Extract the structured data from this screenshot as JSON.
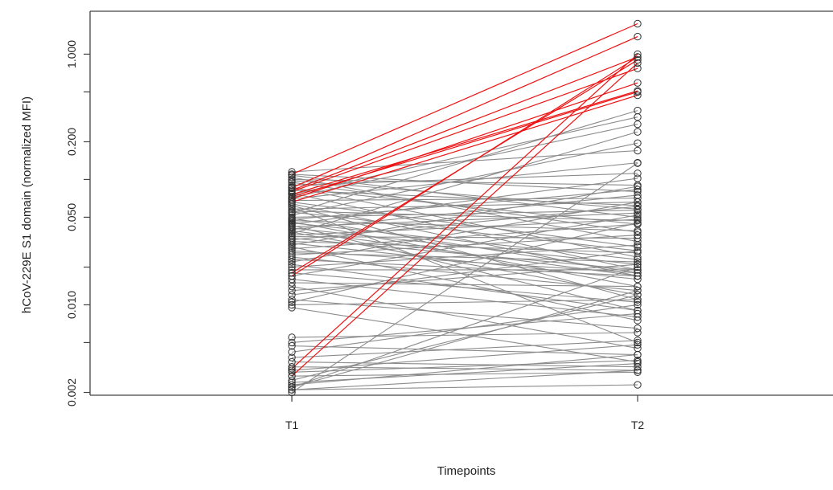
{
  "chart_data": {
    "type": "line",
    "title": "",
    "xlabel": "Timepoints",
    "ylabel": "hCoV-229E S1 domain (normalized MFI)",
    "x_categories": [
      "T1",
      "T2"
    ],
    "y_scale": "log",
    "ylim": [
      0.0019,
      2.2
    ],
    "y_ticks": [
      0.002,
      0.01,
      0.05,
      0.2,
      1.0
    ],
    "y_tick_labels": [
      "0.002",
      "0.010",
      "0.050",
      "0.200",
      "1.000"
    ],
    "grid": false,
    "legend": "none",
    "colors": {
      "red": "#ee1111",
      "gray": "#8c8c8c",
      "point_stroke": "#333333",
      "axis": "#444444"
    },
    "red_series": [
      [
        0.11,
        1.75
      ],
      [
        0.086,
        1.38
      ],
      [
        0.082,
        0.95
      ],
      [
        0.08,
        0.77
      ],
      [
        0.076,
        0.51
      ],
      [
        0.073,
        0.5
      ],
      [
        0.07,
        0.59
      ],
      [
        0.066,
        0.47
      ],
      [
        0.018,
        0.9
      ],
      [
        0.017,
        0.95
      ],
      [
        0.0031,
        1.0
      ],
      [
        0.0027,
        0.85
      ]
    ],
    "gray_series": [
      [
        0.115,
        0.17
      ],
      [
        0.11,
        0.08
      ],
      [
        0.108,
        0.05
      ],
      [
        0.104,
        0.032
      ],
      [
        0.1,
        0.09
      ],
      [
        0.098,
        0.058
      ],
      [
        0.095,
        0.038
      ],
      [
        0.09,
        0.112
      ],
      [
        0.087,
        0.024
      ],
      [
        0.085,
        0.044
      ],
      [
        0.082,
        0.062
      ],
      [
        0.078,
        0.019
      ],
      [
        0.076,
        0.315
      ],
      [
        0.072,
        0.276
      ],
      [
        0.07,
        0.136
      ],
      [
        0.068,
        0.071
      ],
      [
        0.066,
        0.029
      ],
      [
        0.064,
        0.017
      ],
      [
        0.062,
        0.011
      ],
      [
        0.06,
        0.005
      ],
      [
        0.058,
        0.066
      ],
      [
        0.056,
        0.047
      ],
      [
        0.055,
        0.027
      ],
      [
        0.054,
        0.355
      ],
      [
        0.052,
        0.195
      ],
      [
        0.05,
        0.057
      ],
      [
        0.049,
        0.018
      ],
      [
        0.048,
        0.083
      ],
      [
        0.047,
        0.039
      ],
      [
        0.046,
        0.014
      ],
      [
        0.045,
        0.023
      ],
      [
        0.044,
        0.102
      ],
      [
        0.043,
        0.009
      ],
      [
        0.042,
        0.054
      ],
      [
        0.041,
        0.021
      ],
      [
        0.04,
        0.075
      ],
      [
        0.039,
        0.017
      ],
      [
        0.038,
        0.012
      ],
      [
        0.037,
        0.24
      ],
      [
        0.036,
        0.048
      ],
      [
        0.035,
        0.034
      ],
      [
        0.034,
        0.019
      ],
      [
        0.033,
        0.061
      ],
      [
        0.032,
        0.026
      ],
      [
        0.031,
        0.016
      ],
      [
        0.03,
        0.088
      ],
      [
        0.029,
        0.0075
      ],
      [
        0.028,
        0.044
      ],
      [
        0.027,
        0.018
      ],
      [
        0.026,
        0.022
      ],
      [
        0.025,
        0.036
      ],
      [
        0.024,
        0.013
      ],
      [
        0.023,
        0.017
      ],
      [
        0.022,
        0.066
      ],
      [
        0.021,
        0.009
      ],
      [
        0.02,
        0.03
      ],
      [
        0.019,
        0.019
      ],
      [
        0.018,
        0.0105
      ],
      [
        0.017,
        0.052
      ],
      [
        0.016,
        0.008
      ],
      [
        0.015,
        0.014
      ],
      [
        0.014,
        0.0045
      ],
      [
        0.013,
        0.021
      ],
      [
        0.012,
        0.027
      ],
      [
        0.011,
        0.0065
      ],
      [
        0.0105,
        0.045
      ],
      [
        0.01,
        0.011
      ],
      [
        0.0095,
        0.0035
      ],
      [
        0.0055,
        0.006
      ],
      [
        0.005,
        0.0085
      ],
      [
        0.0047,
        0.004
      ],
      [
        0.0042,
        0.01
      ],
      [
        0.0038,
        0.0052
      ],
      [
        0.0035,
        0.0032
      ],
      [
        0.0032,
        0.003
      ],
      [
        0.003,
        0.0048
      ],
      [
        0.0029,
        0.0036
      ],
      [
        0.0027,
        0.0029
      ],
      [
        0.0025,
        0.012
      ],
      [
        0.0024,
        0.0034
      ],
      [
        0.0023,
        0.004
      ],
      [
        0.0022,
        0.013
      ],
      [
        0.0021,
        0.003
      ],
      [
        0.0021,
        0.0023
      ],
      [
        0.0022,
        0.02
      ],
      [
        0.002,
        0.135
      ]
    ]
  }
}
